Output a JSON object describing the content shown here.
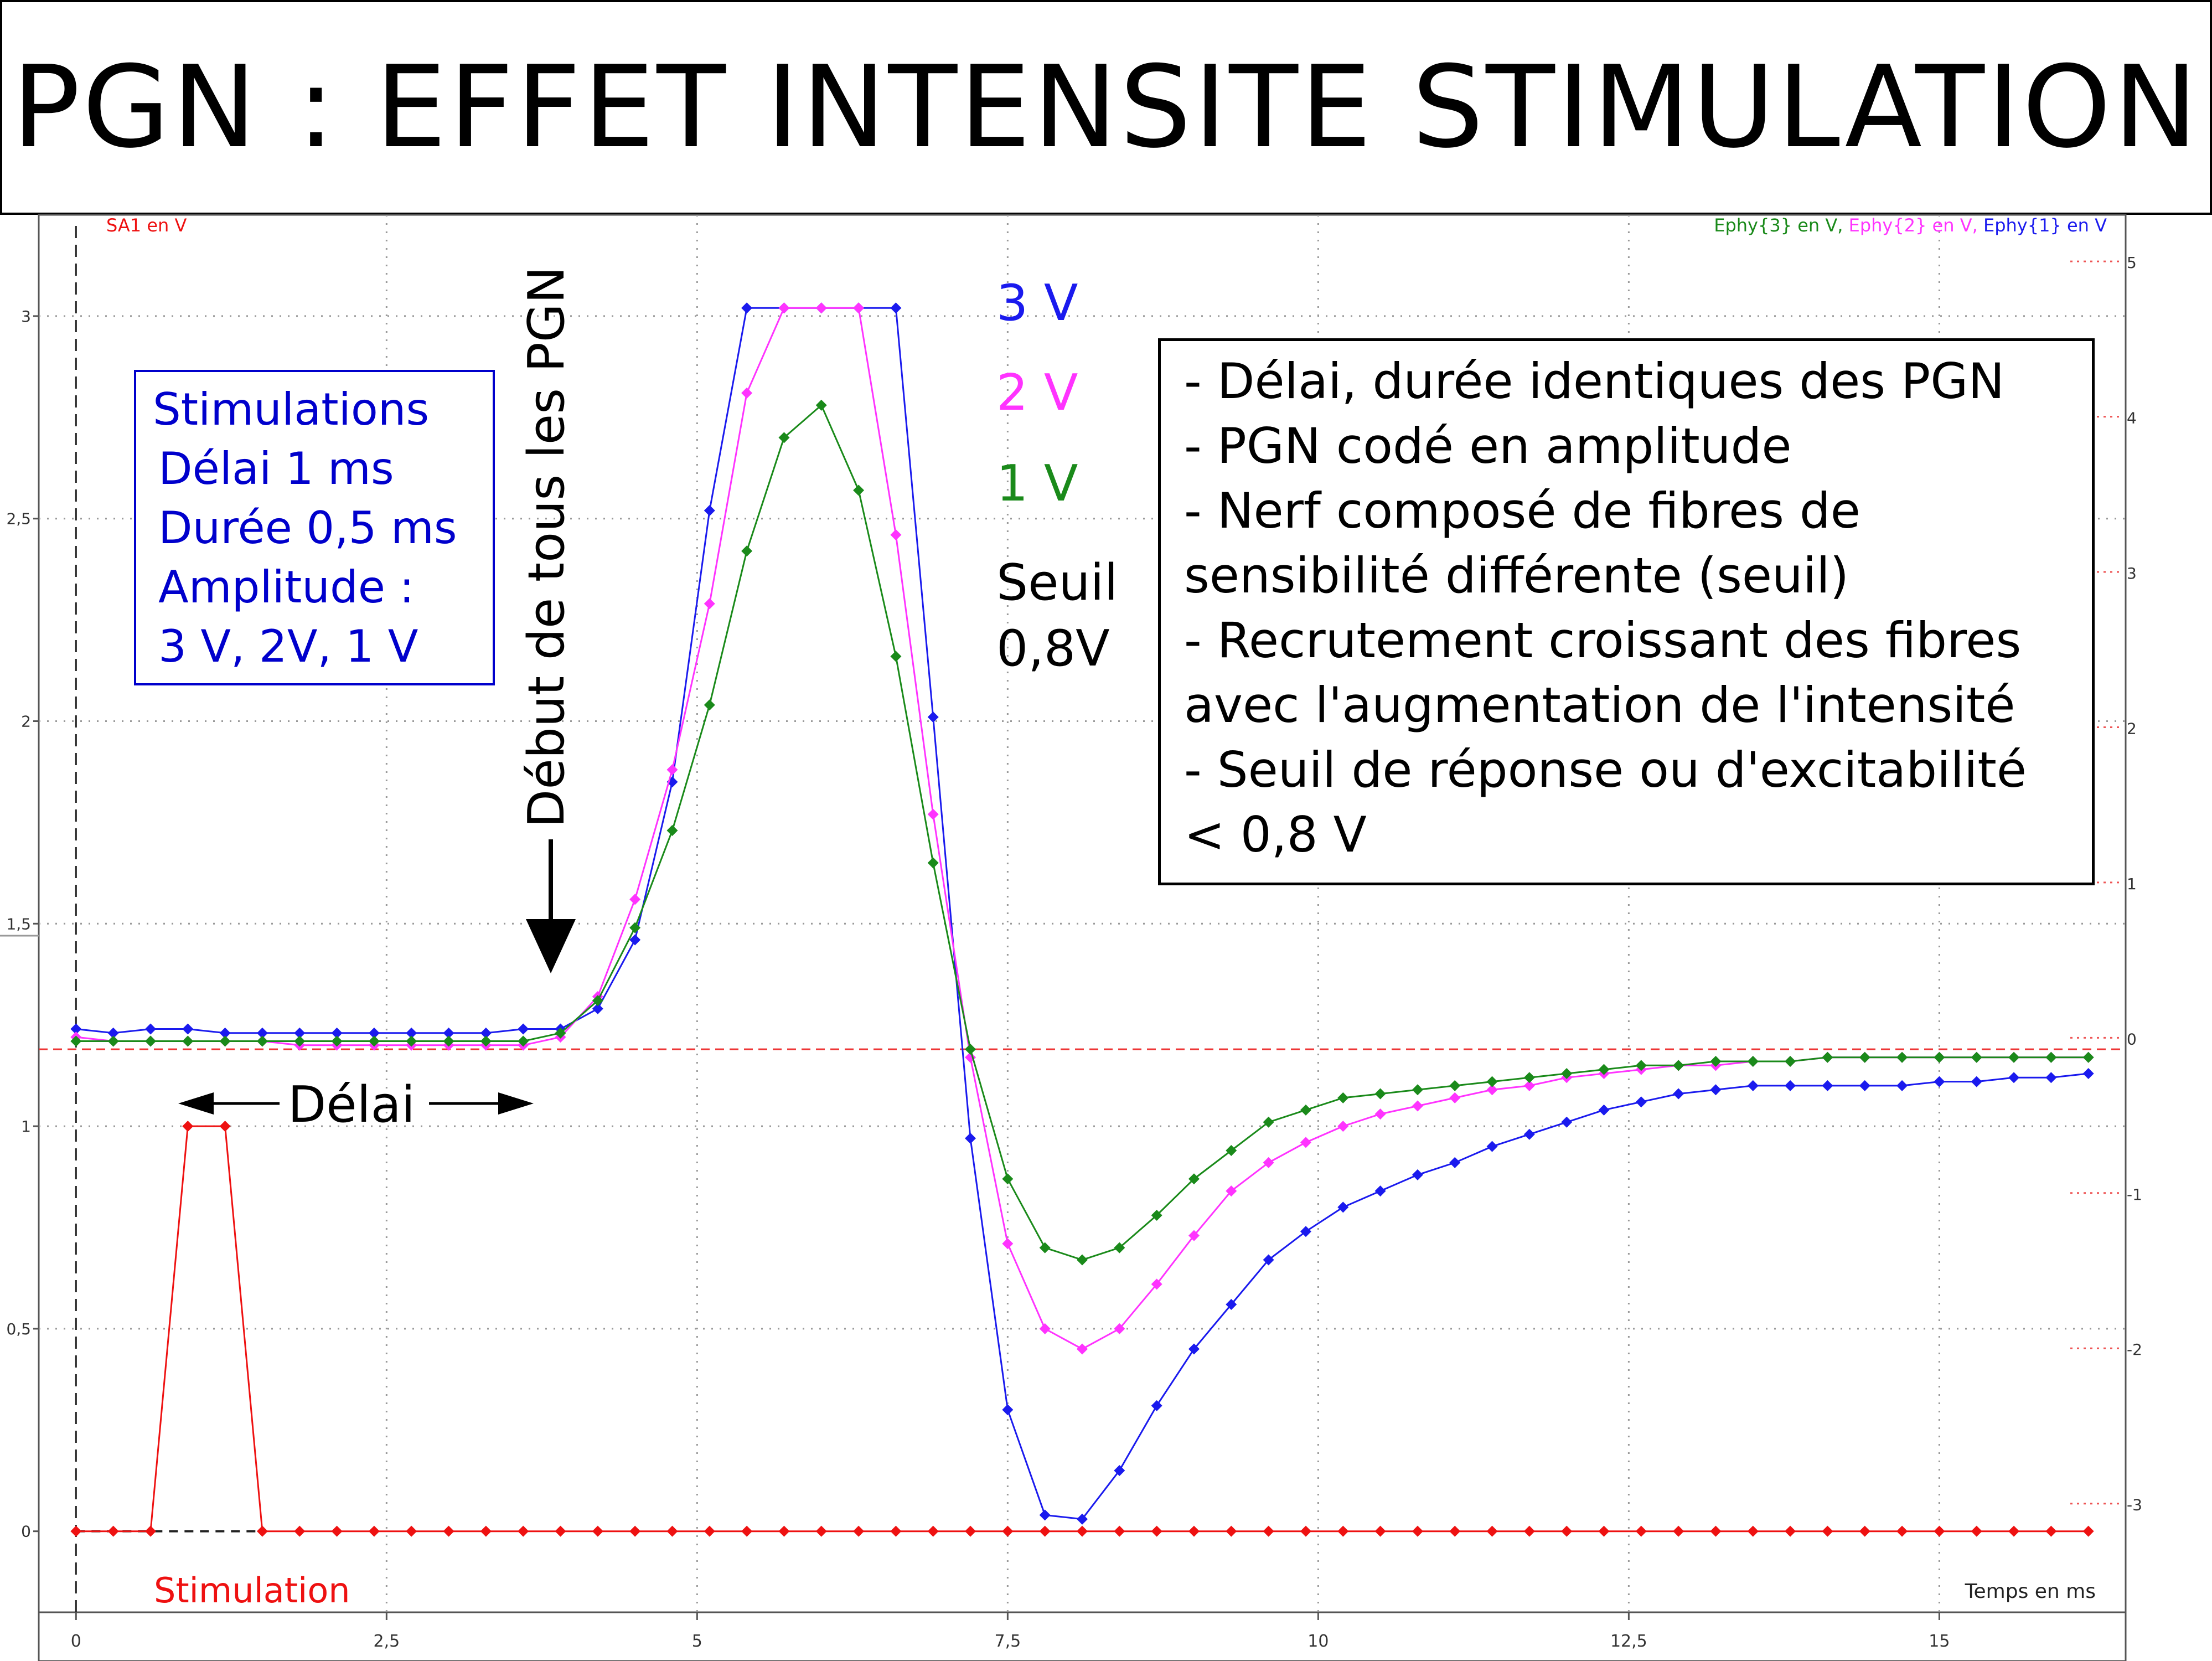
{
  "title": "PGN : EFFET INTENSITE STIMULATION",
  "axis_labels": {
    "left": "SA1 en V",
    "right_parts": [
      {
        "text": "Ephy{3} en V, ",
        "color": "#1a8a1a"
      },
      {
        "text": "Ephy{2} en V, ",
        "color": "#ff33ff"
      },
      {
        "text": "Ephy{1} en V",
        "color": "#1a1aee"
      }
    ],
    "x": "Temps en ms"
  },
  "stim_box": {
    "lines": [
      "Stimulations",
      "Délai 1 ms",
      "Durée 0,5 ms",
      "Amplitude :",
      "3 V, 2V, 1 V"
    ]
  },
  "info_box": {
    "lines": [
      "- Délai, durée identiques des PGN",
      "- PGN codé en amplitude",
      "- Nerf composé de fibres de",
      "sensibilité différente (seuil)",
      "- Recrutement croissant des fibres",
      "avec l'augmentation de l'intensité",
      "- Seuil de réponse ou d'excitabilité",
      "< 0,8 V"
    ]
  },
  "labels": {
    "v3": "3 V",
    "v2": "2 V",
    "v1": "1 V",
    "seuil_line1": "Seuil",
    "seuil_line2": "0,8V",
    "debut": "Début de tous les PGN",
    "delai": "Délai",
    "stimulation": "Stimulation"
  },
  "colors": {
    "stimulation": "#ee1111",
    "v3": "#1a1aee",
    "v2": "#ff33ff",
    "v1": "#1a8a1a",
    "grid": "#999999"
  },
  "chart_data": {
    "type": "line",
    "xlabel": "Temps en ms",
    "ylabel_left": "SA1 en V",
    "ylabel_right": "Ephy{3} en V, Ephy{2} en V, Ephy{1} en V",
    "xlim": [
      -0.3,
      16.5
    ],
    "ylim_left": [
      -0.2,
      3.25
    ],
    "ylim_right": [
      -3.7,
      5.3
    ],
    "x_ticks": [
      0,
      2.5,
      5,
      7.5,
      10,
      12.5,
      15
    ],
    "x_tick_labels": [
      "0",
      "2,5",
      "5",
      "7,5",
      "10",
      "12,5",
      "15"
    ],
    "y_left_ticks": [
      0,
      0.5,
      1,
      1.5,
      2,
      2.5,
      3
    ],
    "y_left_tick_labels": [
      "0",
      "0,5",
      "1",
      "1,5",
      "2",
      "2,5",
      "3"
    ],
    "y_right_ticks": [
      -3,
      -2,
      -1,
      0,
      1,
      2,
      3,
      4,
      5
    ],
    "y_right_tick_labels": [
      "-3",
      "-2",
      "-1",
      "0",
      "1",
      "2",
      "3",
      "4",
      "5"
    ],
    "grid": true,
    "baseline_left": 1.19,
    "series": [
      {
        "name": "Ephy{1}",
        "axis": "left",
        "x": [
          0,
          0.3,
          0.6,
          0.9,
          1.2,
          1.5,
          1.8,
          2.1,
          2.4,
          2.7,
          3.0,
          3.3,
          3.6,
          3.9,
          4.2,
          4.5,
          4.8,
          5.1,
          5.4,
          5.7,
          6.0,
          6.3,
          6.6,
          6.9,
          7.2,
          7.5,
          7.8,
          8.1,
          8.4,
          8.7,
          9.0,
          9.3,
          9.6,
          9.9,
          10.2,
          10.5,
          10.8,
          11.1,
          11.4,
          11.7,
          12.0,
          12.3,
          12.6,
          12.9,
          13.2,
          13.5,
          13.8,
          14.1,
          14.4,
          14.7,
          15.0,
          15.3,
          15.6,
          15.9,
          16.2
        ],
        "values": [
          1.24,
          1.23,
          1.24,
          1.24,
          1.23,
          1.23,
          1.23,
          1.23,
          1.23,
          1.23,
          1.23,
          1.23,
          1.24,
          1.24,
          1.29,
          1.46,
          1.85,
          2.52,
          3.02,
          3.02,
          3.02,
          3.02,
          3.02,
          2.01,
          0.97,
          0.3,
          0.04,
          0.03,
          0.15,
          0.31,
          0.45,
          0.56,
          0.67,
          0.74,
          0.8,
          0.84,
          0.88,
          0.91,
          0.95,
          0.98,
          1.01,
          1.04,
          1.06,
          1.08,
          1.09,
          1.1,
          1.1,
          1.1,
          1.1,
          1.1,
          1.11,
          1.11,
          1.12,
          1.12,
          1.13
        ]
      },
      {
        "name": "Ephy{2}",
        "axis": "left",
        "x": [
          0,
          0.3,
          0.6,
          0.9,
          1.2,
          1.5,
          1.8,
          2.1,
          2.4,
          2.7,
          3.0,
          3.3,
          3.6,
          3.9,
          4.2,
          4.5,
          4.8,
          5.1,
          5.4,
          5.7,
          6.0,
          6.3,
          6.6,
          6.9,
          7.2,
          7.5,
          7.8,
          8.1,
          8.4,
          8.7,
          9.0,
          9.3,
          9.6,
          9.9,
          10.2,
          10.5,
          10.8,
          11.1,
          11.4,
          11.7,
          12.0,
          12.3,
          12.6,
          12.9,
          13.2,
          13.5,
          13.8,
          14.1,
          14.4,
          14.7,
          15.0,
          15.3,
          15.6,
          15.9,
          16.2
        ],
        "values": [
          1.22,
          1.21,
          1.21,
          1.21,
          1.21,
          1.21,
          1.2,
          1.2,
          1.2,
          1.2,
          1.2,
          1.2,
          1.2,
          1.22,
          1.32,
          1.56,
          1.88,
          2.29,
          2.81,
          3.02,
          3.02,
          3.02,
          2.46,
          1.77,
          1.17,
          0.71,
          0.5,
          0.45,
          0.5,
          0.61,
          0.73,
          0.84,
          0.91,
          0.96,
          1.0,
          1.03,
          1.05,
          1.07,
          1.09,
          1.1,
          1.12,
          1.13,
          1.14,
          1.15,
          1.15,
          1.16,
          1.16,
          1.17,
          1.17,
          1.17,
          1.17,
          1.17,
          1.17,
          1.17,
          1.17
        ]
      },
      {
        "name": "Ephy{3}",
        "axis": "left",
        "x": [
          0,
          0.3,
          0.6,
          0.9,
          1.2,
          1.5,
          1.8,
          2.1,
          2.4,
          2.7,
          3.0,
          3.3,
          3.6,
          3.9,
          4.2,
          4.5,
          4.8,
          5.1,
          5.4,
          5.7,
          6.0,
          6.3,
          6.6,
          6.9,
          7.2,
          7.5,
          7.8,
          8.1,
          8.4,
          8.7,
          9.0,
          9.3,
          9.6,
          9.9,
          10.2,
          10.5,
          10.8,
          11.1,
          11.4,
          11.7,
          12.0,
          12.3,
          12.6,
          12.9,
          13.2,
          13.5,
          13.8,
          14.1,
          14.4,
          14.7,
          15.0,
          15.3,
          15.6,
          15.9,
          16.2
        ],
        "values": [
          1.21,
          1.21,
          1.21,
          1.21,
          1.21,
          1.21,
          1.21,
          1.21,
          1.21,
          1.21,
          1.21,
          1.21,
          1.21,
          1.23,
          1.31,
          1.49,
          1.73,
          2.04,
          2.42,
          2.7,
          2.78,
          2.57,
          2.16,
          1.65,
          1.19,
          0.87,
          0.7,
          0.67,
          0.7,
          0.78,
          0.87,
          0.94,
          1.01,
          1.04,
          1.07,
          1.08,
          1.09,
          1.1,
          1.11,
          1.12,
          1.13,
          1.14,
          1.15,
          1.15,
          1.16,
          1.16,
          1.16,
          1.17,
          1.17,
          1.17,
          1.17,
          1.17,
          1.17,
          1.17,
          1.17
        ]
      },
      {
        "name": "Stimulation",
        "axis": "left",
        "x": [
          0,
          0.3,
          0.6,
          0.9,
          1.2,
          1.5,
          1.8,
          2.1,
          2.4,
          2.7,
          3.0,
          3.3,
          3.6,
          3.9,
          4.2,
          4.5,
          4.8,
          5.1,
          5.4,
          5.7,
          6.0,
          6.3,
          6.6,
          6.9,
          7.2,
          7.5,
          7.8,
          8.1,
          8.4,
          8.7,
          9.0,
          9.3,
          9.6,
          9.9,
          10.2,
          10.5,
          10.8,
          11.1,
          11.4,
          11.7,
          12.0,
          12.3,
          12.6,
          12.9,
          13.2,
          13.5,
          13.8,
          14.1,
          14.4,
          14.7,
          15.0,
          15.3,
          15.6,
          15.9,
          16.2
        ],
        "values": [
          0,
          0,
          0,
          1,
          1,
          0,
          0,
          0,
          0,
          0,
          0,
          0,
          0,
          0,
          0,
          0,
          0,
          0,
          0,
          0,
          0,
          0,
          0,
          0,
          0,
          0,
          0,
          0,
          0,
          0,
          0,
          0,
          0,
          0,
          0,
          0,
          0,
          0,
          0,
          0,
          0,
          0,
          0,
          0,
          0,
          0,
          0,
          0,
          0,
          0,
          0,
          0,
          0,
          0,
          0
        ]
      }
    ]
  }
}
